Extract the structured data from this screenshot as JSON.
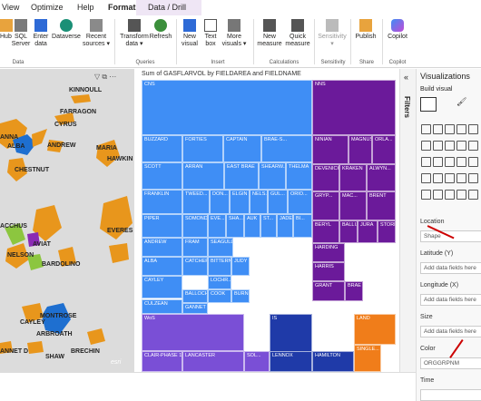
{
  "menu": {
    "items": [
      "View",
      "Optimize",
      "Help",
      "Format",
      "Data / Drill"
    ]
  },
  "ribbon": {
    "buttons": [
      {
        "label": "Hub",
        "sub": ""
      },
      {
        "label": "SQL",
        "sub": "Server"
      },
      {
        "label": "Enter",
        "sub": "data"
      },
      {
        "label": "Dataverse",
        "sub": ""
      },
      {
        "label": "Recent",
        "sub": "sources ▾"
      },
      {
        "label": "Transform",
        "sub": "data ▾"
      },
      {
        "label": "Refresh",
        "sub": ""
      },
      {
        "label": "New",
        "sub": "visual"
      },
      {
        "label": "Text",
        "sub": "box"
      },
      {
        "label": "More",
        "sub": "visuals ▾"
      },
      {
        "label": "New",
        "sub": "measure"
      },
      {
        "label": "Quick",
        "sub": "measure"
      },
      {
        "label": "Sensitivity",
        "sub": "▾"
      },
      {
        "label": "Publish",
        "sub": ""
      },
      {
        "label": "Copilot",
        "sub": ""
      }
    ],
    "groups": [
      "Data",
      "Queries",
      "Insert",
      "Calculations",
      "Sensitivity",
      "Share",
      "Copilot"
    ]
  },
  "map": {
    "labels": [
      "KINNOULL",
      "FARRAGON",
      "CYRUS",
      "ANNA",
      "ALBA",
      "ANDREW",
      "MARIA",
      "HAWKIN",
      "CHESTNUT",
      "AVIAT",
      "ACCHUS",
      "NELSON",
      "BARDOLINO",
      "EVERES",
      "MONTROSE",
      "CAYLEY",
      "ARBROATH",
      "ANNET D",
      "SHAW",
      "BRECHIN"
    ],
    "logo": "esri"
  },
  "visual": {
    "title": "Sum of GASFLARVOL by FIELDAREA and FIELDNAME",
    "tiles": [
      {
        "label": "CNS",
        "color": "#3f8ef5"
      },
      {
        "label": "BUZZARD",
        "color": "#3f8ef5"
      },
      {
        "label": "FORTIES",
        "color": "#3f8ef5"
      },
      {
        "label": "CAPTAIN",
        "color": "#3f8ef5"
      },
      {
        "label": "BRAE-S...",
        "color": "#3f8ef5"
      },
      {
        "label": "SCOTT",
        "color": "#3f8ef5"
      },
      {
        "label": "ARRAN",
        "color": "#3f8ef5"
      },
      {
        "label": "EAST BRAE",
        "color": "#3f8ef5"
      },
      {
        "label": "SHEARW...",
        "color": "#3f8ef5"
      },
      {
        "label": "THELMA",
        "color": "#3f8ef5"
      },
      {
        "label": "FRANKLIN",
        "color": "#3f8ef5"
      },
      {
        "label": "TWEED...",
        "color": "#3f8ef5"
      },
      {
        "label": "DON...",
        "color": "#3f8ef5"
      },
      {
        "label": "ELGIN",
        "color": "#3f8ef5"
      },
      {
        "label": "NELS...",
        "color": "#3f8ef5"
      },
      {
        "label": "GUL...",
        "color": "#3f8ef5"
      },
      {
        "label": "ORIO...",
        "color": "#3f8ef5"
      },
      {
        "label": "PIPER",
        "color": "#3f8ef5"
      },
      {
        "label": "SOMOND",
        "color": "#3f8ef5"
      },
      {
        "label": "EVE...",
        "color": "#3f8ef5"
      },
      {
        "label": "SHA...",
        "color": "#3f8ef5"
      },
      {
        "label": "AUK",
        "color": "#3f8ef5"
      },
      {
        "label": "ST...",
        "color": "#3f8ef5"
      },
      {
        "label": "JADE",
        "color": "#3f8ef5"
      },
      {
        "label": "BI...",
        "color": "#3f8ef5"
      },
      {
        "label": "ANDREW",
        "color": "#3f8ef5"
      },
      {
        "label": "FRAM",
        "color": "#3f8ef5"
      },
      {
        "label": "SEAGULL",
        "color": "#3f8ef5"
      },
      {
        "label": "CATCHER",
        "color": "#3f8ef5"
      },
      {
        "label": "BITTERN",
        "color": "#3f8ef5"
      },
      {
        "label": "JUDY",
        "color": "#3f8ef5"
      },
      {
        "label": "ALBA",
        "color": "#3f8ef5"
      },
      {
        "label": "LOCHR...",
        "color": "#3f8ef5"
      },
      {
        "label": "CAYLEY",
        "color": "#3f8ef5"
      },
      {
        "label": "BALLOCH",
        "color": "#3f8ef5"
      },
      {
        "label": "COOK",
        "color": "#3f8ef5"
      },
      {
        "label": "BURN...",
        "color": "#3f8ef5"
      },
      {
        "label": "CULZEAN",
        "color": "#3f8ef5"
      },
      {
        "label": "GANNET",
        "color": "#3f8ef5"
      },
      {
        "label": "NNS",
        "color": "#6b1a9a"
      },
      {
        "label": "NINIAN",
        "color": "#6b1a9a"
      },
      {
        "label": "MAGNUS",
        "color": "#6b1a9a"
      },
      {
        "label": "ORLA...",
        "color": "#6b1a9a"
      },
      {
        "label": "DEVENICK",
        "color": "#6b1a9a"
      },
      {
        "label": "KRAKEN",
        "color": "#6b1a9a"
      },
      {
        "label": "ALWYN...",
        "color": "#6b1a9a"
      },
      {
        "label": "GRYP...",
        "color": "#6b1a9a"
      },
      {
        "label": "MAC...",
        "color": "#6b1a9a"
      },
      {
        "label": "BRENT",
        "color": "#6b1a9a"
      },
      {
        "label": "BERYL",
        "color": "#6b1a9a"
      },
      {
        "label": "BALLI...",
        "color": "#6b1a9a"
      },
      {
        "label": "JURA",
        "color": "#6b1a9a"
      },
      {
        "label": "STORR",
        "color": "#6b1a9a"
      },
      {
        "label": "HARDING",
        "color": "#6b1a9a"
      },
      {
        "label": "HARRIS",
        "color": "#6b1a9a"
      },
      {
        "label": "GRANT",
        "color": "#6b1a9a"
      },
      {
        "label": "BRAE",
        "color": "#6b1a9a"
      },
      {
        "label": "WoS",
        "color": "#7a4fd6"
      },
      {
        "label": "CLAIR-PHASE 1 [FA...",
        "color": "#7a4fd6"
      },
      {
        "label": "LANCASTER",
        "color": "#7a4fd6"
      },
      {
        "label": "SOL...",
        "color": "#7a4fd6"
      },
      {
        "label": "IS",
        "color": "#1f3aa8"
      },
      {
        "label": "LENNOX",
        "color": "#1f3aa8"
      },
      {
        "label": "HAMILTON",
        "color": "#1f3aa8"
      },
      {
        "label": "LAND",
        "color": "#f07d1a"
      },
      {
        "label": "SINGLE...",
        "color": "#f07d1a"
      }
    ]
  },
  "filters": {
    "label": "Filters"
  },
  "panel": {
    "title": "Visualizations",
    "build": "Build visual",
    "wells": [
      {
        "label": "Location",
        "value": "Shape"
      },
      {
        "label": "Latitude (Y)",
        "value": "Add data fields here"
      },
      {
        "label": "Longitude (X)",
        "value": "Add data fields here"
      },
      {
        "label": "Size",
        "value": "Add data fields here"
      },
      {
        "label": "Color",
        "value": "ORGGRPNM"
      },
      {
        "label": "Time",
        "value": ""
      }
    ]
  }
}
